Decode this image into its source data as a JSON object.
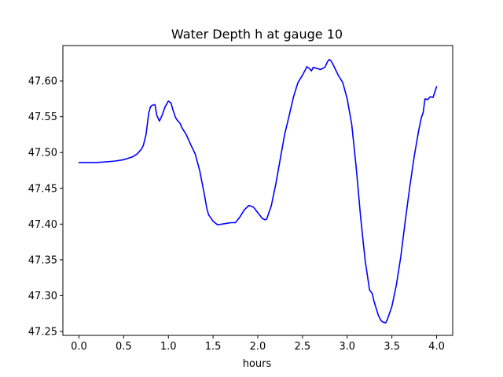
{
  "chart_data": {
    "type": "line",
    "title": "Water Depth h at gauge 10",
    "xlabel": "hours",
    "ylabel": "",
    "xlim": [
      -0.18,
      4.18
    ],
    "ylim": [
      47.2445,
      47.6495
    ],
    "xticks": [
      0.0,
      0.5,
      1.0,
      1.5,
      2.0,
      2.5,
      3.0,
      3.5,
      4.0
    ],
    "xtick_labels": [
      "0.0",
      "0.5",
      "1.0",
      "1.5",
      "2.0",
      "2.5",
      "3.0",
      "3.5",
      "4.0"
    ],
    "yticks": [
      47.25,
      47.3,
      47.35,
      47.4,
      47.45,
      47.5,
      47.55,
      47.6
    ],
    "ytick_labels": [
      "47.25",
      "47.30",
      "47.35",
      "47.40",
      "47.45",
      "47.50",
      "47.55",
      "47.60"
    ],
    "grid": false,
    "series": [
      {
        "color": "#0000ff",
        "x": [
          0.0,
          0.2,
          0.3,
          0.4,
          0.5,
          0.55,
          0.6,
          0.65,
          0.7,
          0.72,
          0.75,
          0.78,
          0.8,
          0.82,
          0.85,
          0.87,
          0.9,
          0.93,
          0.96,
          1.0,
          1.03,
          1.05,
          1.08,
          1.1,
          1.13,
          1.15,
          1.2,
          1.25,
          1.3,
          1.35,
          1.4,
          1.43,
          1.45,
          1.5,
          1.55,
          1.6,
          1.65,
          1.7,
          1.75,
          1.8,
          1.85,
          1.9,
          1.95,
          2.0,
          2.05,
          2.08,
          2.1,
          2.13,
          2.15,
          2.2,
          2.25,
          2.3,
          2.35,
          2.4,
          2.45,
          2.5,
          2.55,
          2.58,
          2.6,
          2.62,
          2.65,
          2.7,
          2.75,
          2.78,
          2.8,
          2.82,
          2.85,
          2.9,
          2.95,
          3.0,
          3.05,
          3.1,
          3.15,
          3.2,
          3.25,
          3.28,
          3.3,
          3.33,
          3.35,
          3.38,
          3.4,
          3.43,
          3.45,
          3.5,
          3.55,
          3.6,
          3.65,
          3.7,
          3.75,
          3.8,
          3.83,
          3.85,
          3.87,
          3.9,
          3.93,
          3.96,
          4.0
        ],
        "y": [
          47.486,
          47.486,
          47.487,
          47.488,
          47.49,
          47.492,
          47.494,
          47.498,
          47.505,
          47.51,
          47.525,
          47.555,
          47.564,
          47.566,
          47.567,
          47.552,
          47.544,
          47.552,
          47.563,
          47.572,
          47.569,
          47.56,
          47.549,
          47.545,
          47.541,
          47.535,
          47.525,
          47.511,
          47.498,
          47.475,
          47.443,
          47.422,
          47.413,
          47.404,
          47.399,
          47.4,
          47.401,
          47.402,
          47.402,
          47.41,
          47.42,
          47.426,
          47.424,
          47.416,
          47.408,
          47.406,
          47.407,
          47.418,
          47.425,
          47.455,
          47.49,
          47.525,
          47.551,
          47.578,
          47.598,
          47.608,
          47.62,
          47.617,
          47.614,
          47.619,
          47.618,
          47.616,
          47.619,
          47.627,
          47.63,
          47.628,
          47.621,
          47.608,
          47.598,
          47.575,
          47.54,
          47.48,
          47.41,
          47.35,
          47.308,
          47.303,
          47.292,
          47.28,
          47.272,
          47.265,
          47.263,
          47.262,
          47.267,
          47.285,
          47.315,
          47.355,
          47.405,
          47.452,
          47.495,
          47.531,
          47.549,
          47.556,
          47.575,
          47.574,
          47.578,
          47.577,
          47.592
        ]
      }
    ]
  }
}
